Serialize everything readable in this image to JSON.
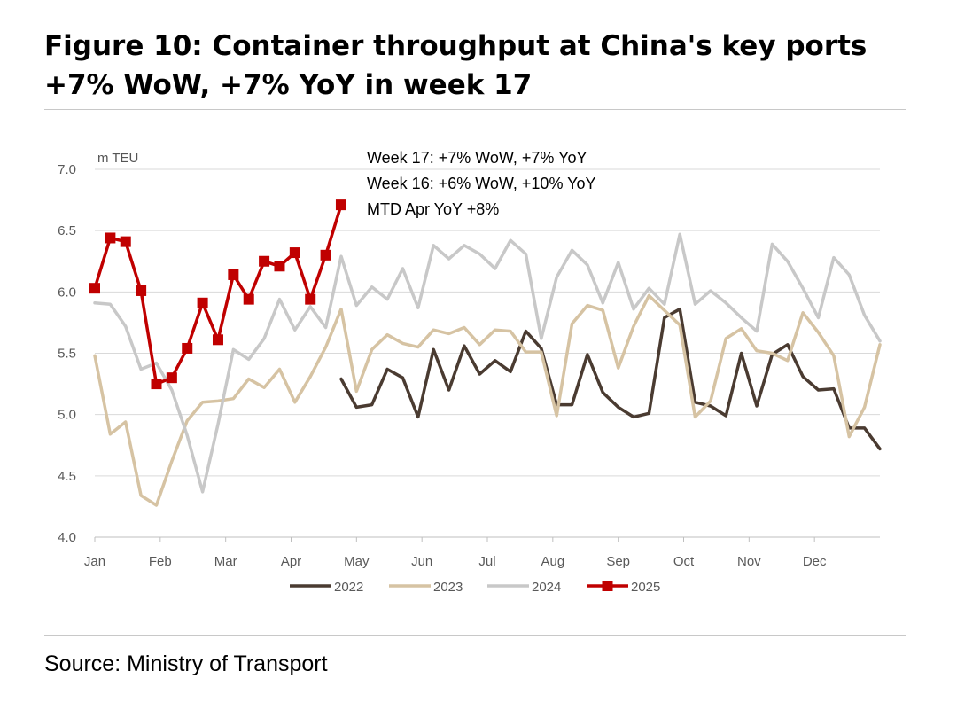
{
  "title": "Figure 10: Container throughput at China's key ports +7% WoW, +7% YoY in week 17",
  "source": "Source: Ministry of Transport",
  "chart_data": {
    "type": "line",
    "unit_label": "m TEU",
    "ylim": [
      4.0,
      7.0
    ],
    "yticks": [
      "4.0",
      "4.5",
      "5.0",
      "5.5",
      "6.0",
      "6.5",
      "7.0"
    ],
    "x_range_weeks": [
      1,
      52
    ],
    "month_labels": [
      "Jan",
      "Feb",
      "Mar",
      "Apr",
      "May",
      "Jun",
      "Jul",
      "Aug",
      "Sep",
      "Oct",
      "Nov",
      "Dec"
    ],
    "grid": true,
    "legend_position": "bottom",
    "annotations": [
      "Week 17: +7% WoW, +7%  YoY",
      "Week 16: +6% WoW, +10% YoY",
      "MTD Apr YoY +8%"
    ],
    "series": [
      {
        "name": "2022",
        "color": "#4a3b31",
        "marker": false,
        "start_week": 17,
        "values": [
          5.29,
          5.06,
          5.08,
          5.37,
          5.3,
          4.98,
          5.53,
          5.2,
          5.56,
          5.33,
          5.44,
          5.35,
          5.68,
          5.54,
          5.08,
          5.08,
          5.49,
          5.18,
          5.06,
          4.98,
          5.01,
          5.79,
          5.86,
          5.1,
          5.07,
          4.99,
          5.5,
          5.07,
          5.49,
          5.57,
          5.31,
          5.2,
          5.21,
          4.89,
          4.89,
          4.72
        ]
      },
      {
        "name": "2023",
        "color": "#d6c3a3",
        "marker": false,
        "start_week": 1,
        "values": [
          5.48,
          4.84,
          4.94,
          4.34,
          4.26,
          4.62,
          4.95,
          5.1,
          5.11,
          5.13,
          5.29,
          5.22,
          5.37,
          5.1,
          5.31,
          5.55,
          5.86,
          5.19,
          5.53,
          5.65,
          5.58,
          5.55,
          5.69,
          5.66,
          5.71,
          5.57,
          5.69,
          5.68,
          5.51,
          5.51,
          4.99,
          5.74,
          5.89,
          5.85,
          5.38,
          5.72,
          5.97,
          5.85,
          5.73,
          4.98,
          5.11,
          5.62,
          5.7,
          5.52,
          5.5,
          5.44,
          5.83,
          5.67,
          5.48,
          4.82,
          5.06,
          5.57
        ]
      },
      {
        "name": "2024",
        "color": "#c8c8c8",
        "marker": false,
        "start_week": 1,
        "values": [
          5.91,
          5.9,
          5.72,
          5.37,
          5.42,
          5.2,
          4.83,
          4.37,
          4.92,
          5.53,
          5.45,
          5.62,
          5.94,
          5.69,
          5.88,
          5.71,
          6.29,
          5.89,
          6.04,
          5.94,
          6.19,
          5.87,
          6.38,
          6.27,
          6.38,
          6.31,
          6.19,
          6.42,
          6.31,
          5.62,
          6.12,
          6.34,
          6.22,
          5.91,
          6.24,
          5.86,
          6.03,
          5.9,
          6.47,
          5.9,
          6.01,
          5.91,
          5.79,
          5.68,
          6.39,
          6.25,
          6.03,
          5.79,
          6.28,
          6.14,
          5.81,
          5.6
        ]
      },
      {
        "name": "2025",
        "color": "#c00000",
        "marker": true,
        "start_week": 1,
        "values": [
          6.03,
          6.44,
          6.41,
          6.01,
          5.25,
          5.3,
          5.54,
          5.91,
          5.61,
          6.14,
          5.94,
          6.25,
          6.21,
          6.32,
          5.94,
          6.3,
          6.71
        ]
      }
    ]
  }
}
